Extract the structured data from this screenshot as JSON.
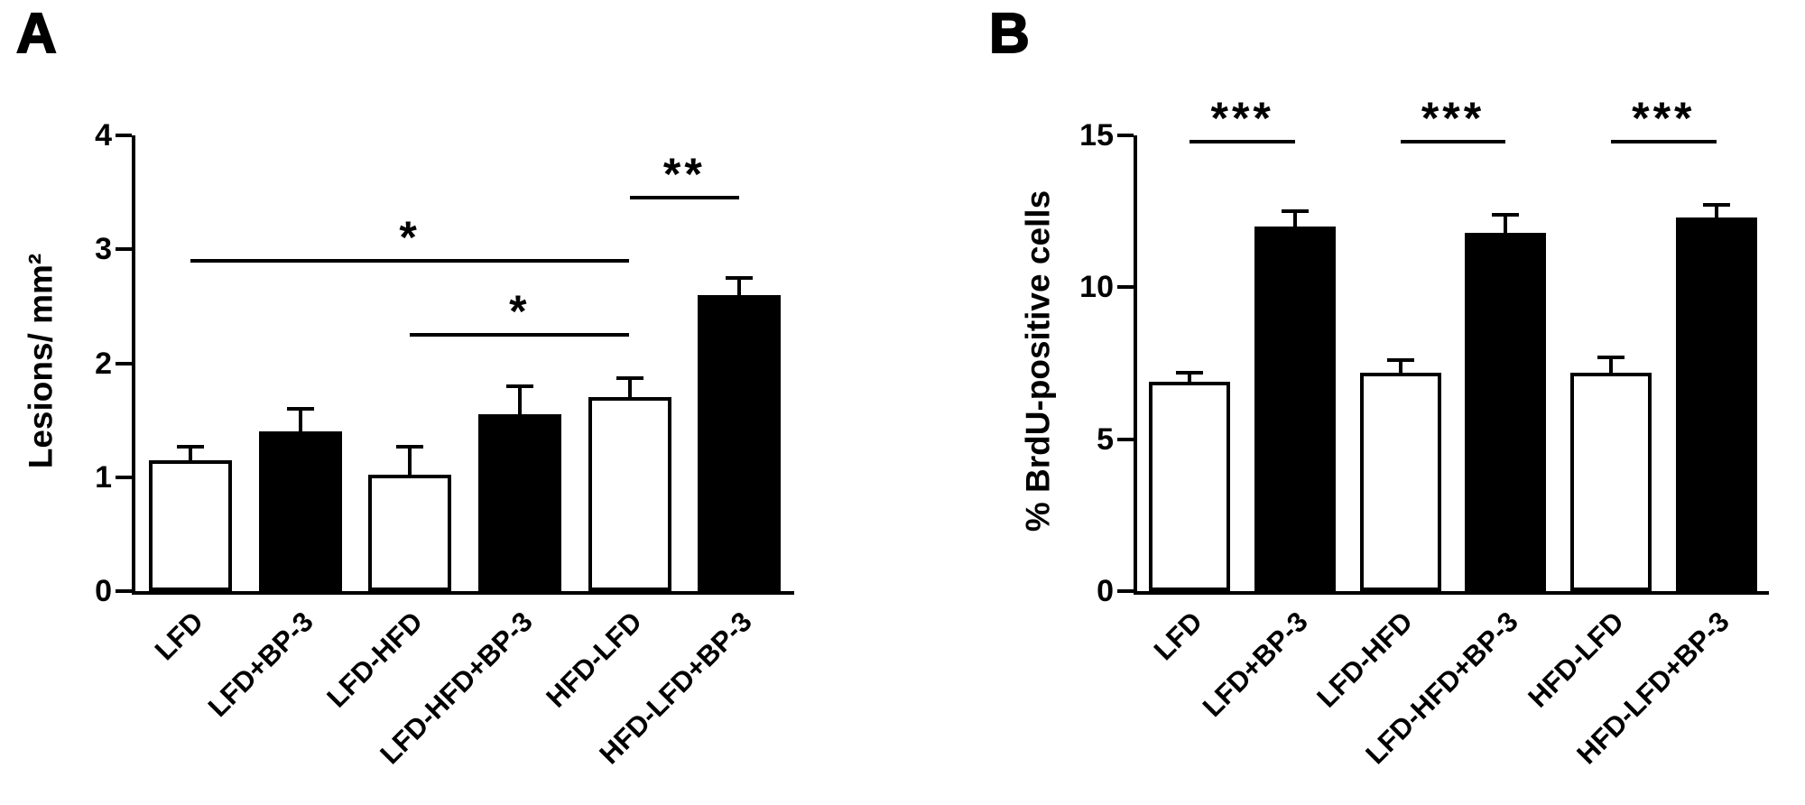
{
  "figure": {
    "background": "#ffffff",
    "axis_color": "#000000",
    "bar_open_fill": "#ffffff",
    "bar_closed_fill": "#000000"
  },
  "chart_data": [
    {
      "type": "bar",
      "panel_label": "A",
      "ylabel": "Lesions/ mm²",
      "xlabel": "",
      "ylim": [
        0,
        4
      ],
      "yticks": [
        0,
        1,
        2,
        3,
        4
      ],
      "grid": false,
      "legend": "none",
      "categories": [
        "LFD",
        "LFD+BP-3",
        "LFD-HFD",
        "LFD-HFD+BP-3",
        "HFD-LFD",
        "HFD-LFD+BP-3"
      ],
      "values": [
        1.15,
        1.4,
        1.02,
        1.55,
        1.7,
        2.6
      ],
      "errors": [
        0.12,
        0.2,
        0.25,
        0.25,
        0.17,
        0.15
      ],
      "bar_fills": [
        "open",
        "closed",
        "open",
        "closed",
        "open",
        "closed"
      ],
      "significance": [
        {
          "label": "*",
          "from": 2,
          "to": 4,
          "y": 2.25
        },
        {
          "label": "*",
          "from": 0,
          "to": 4,
          "y": 2.9
        },
        {
          "label": "**",
          "from": 4,
          "to": 5,
          "y": 3.45
        }
      ]
    },
    {
      "type": "bar",
      "panel_label": "B",
      "ylabel": "% BrdU-positive cells",
      "xlabel": "",
      "ylim": [
        0,
        15
      ],
      "yticks": [
        0,
        5,
        10,
        15
      ],
      "grid": false,
      "legend": "none",
      "categories": [
        "LFD",
        "LFD+BP-3",
        "LFD-HFD",
        "LFD-HFD+BP-3",
        "HFD-LFD",
        "HFD-LFD+BP-3"
      ],
      "values": [
        6.9,
        12.0,
        7.2,
        11.8,
        7.2,
        12.3
      ],
      "errors": [
        0.3,
        0.5,
        0.4,
        0.6,
        0.5,
        0.4
      ],
      "bar_fills": [
        "open",
        "closed",
        "open",
        "closed",
        "open",
        "closed"
      ],
      "significance": [
        {
          "label": "***",
          "from": 0,
          "to": 1,
          "y": 14.8
        },
        {
          "label": "***",
          "from": 2,
          "to": 3,
          "y": 14.8
        },
        {
          "label": "***",
          "from": 4,
          "to": 5,
          "y": 14.8
        }
      ]
    }
  ]
}
